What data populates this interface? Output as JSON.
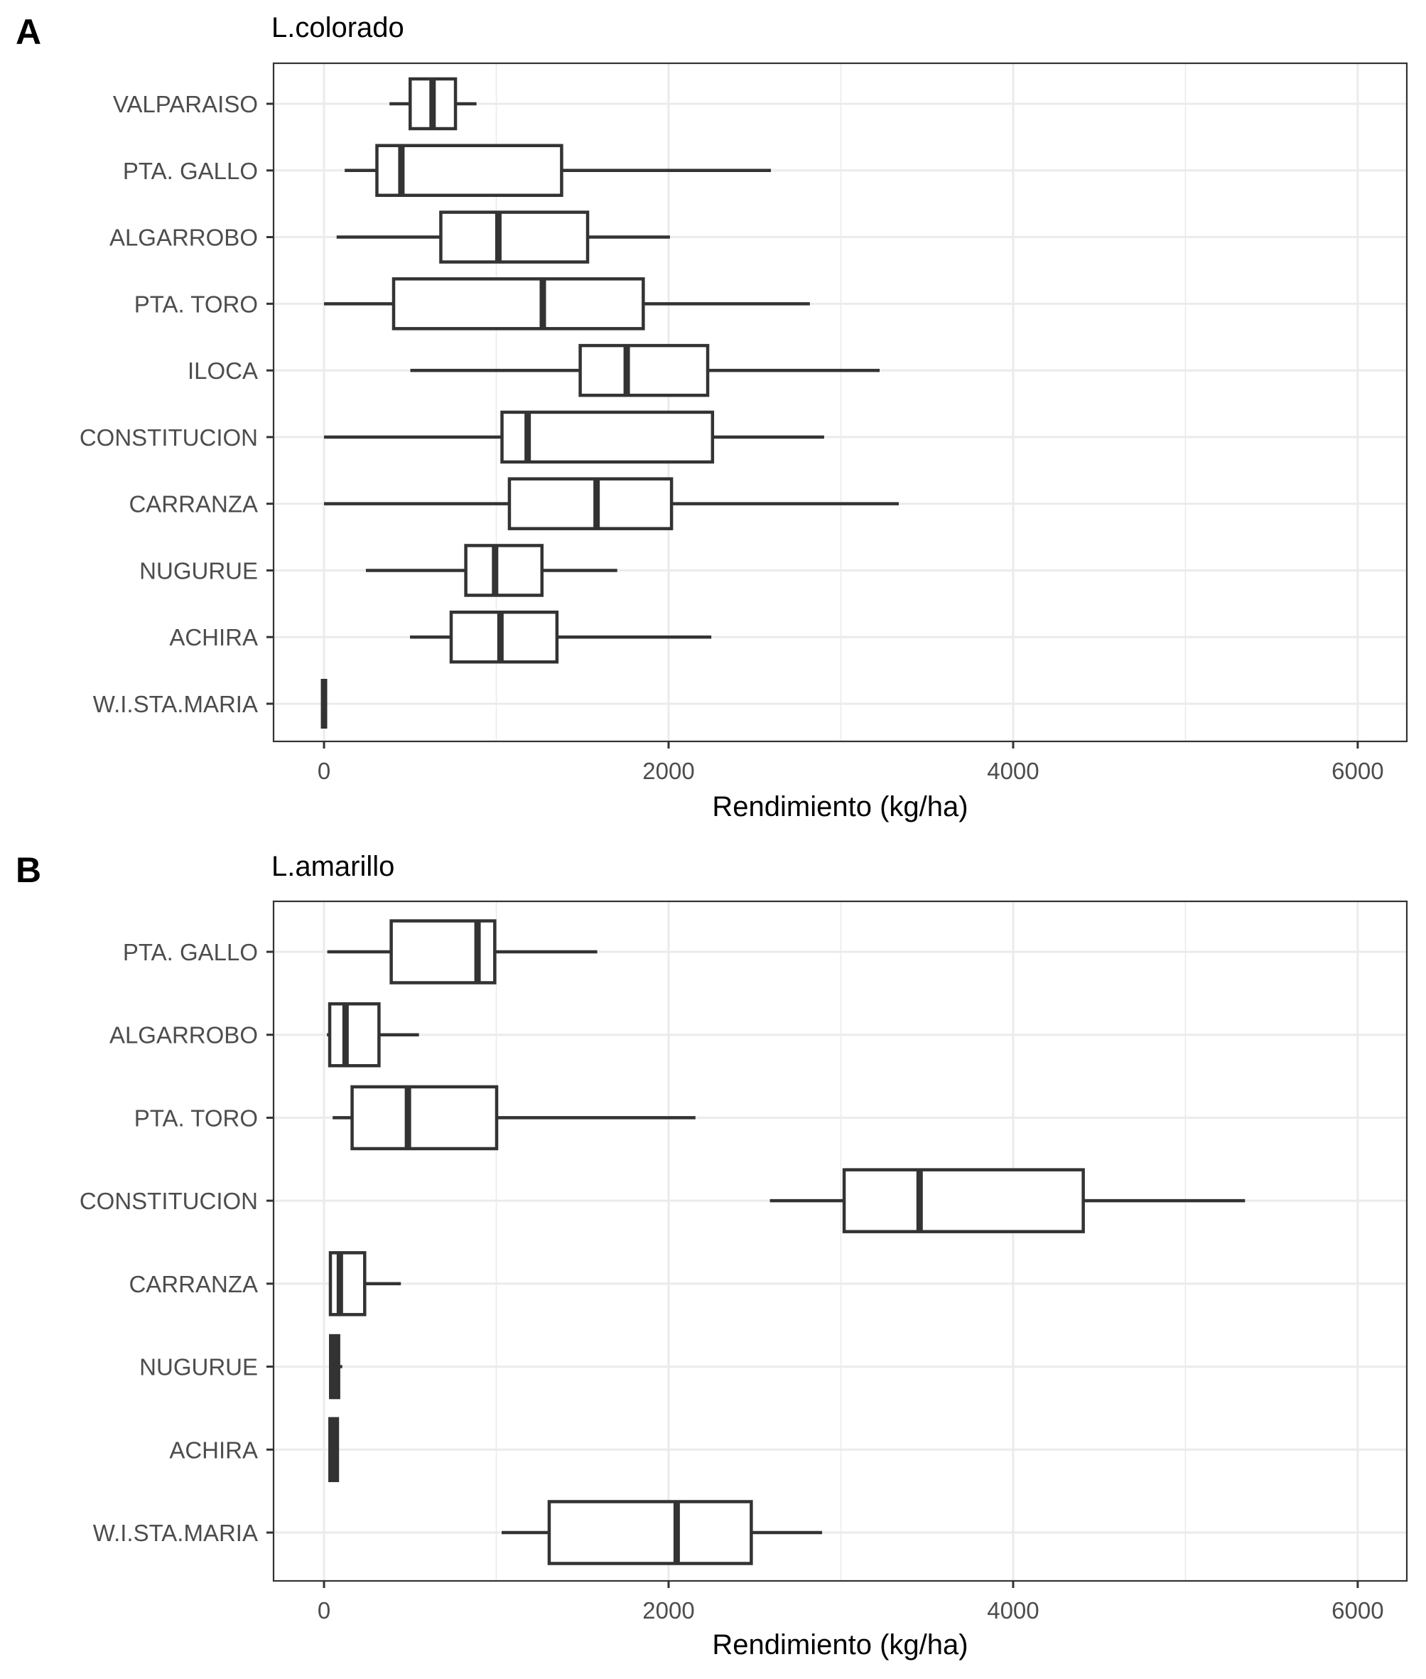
{
  "chart_data": [
    {
      "type": "boxplot",
      "panel_label": "A",
      "title": "L.colorado",
      "xlabel": "Rendimiento (kg/ha)",
      "ylabel": "",
      "xlim": [
        -293,
        6285
      ],
      "xticks": [
        0,
        2000,
        4000,
        6000
      ],
      "xtick_labels": [
        "0",
        "2000",
        "4000",
        "6000"
      ],
      "grid": true,
      "orientation": "horizontal",
      "categories": [
        "VALPARAISO",
        "PTA. GALLO",
        "ALGARROBO",
        "PTA. TORO",
        "ILOCA",
        "CONSTITUCION",
        "CARRANZA",
        "NUGURUE",
        "ACHIRA",
        "W.I.STA.MARIA"
      ],
      "series": [
        {
          "name": "VALPARAISO",
          "min": 380,
          "q1": 500,
          "median": 630,
          "q3": 763,
          "max": 885
        },
        {
          "name": "PTA. GALLO",
          "min": 120,
          "q1": 307,
          "median": 449,
          "q3": 1379,
          "max": 2594
        },
        {
          "name": "ALGARROBO",
          "min": 73,
          "q1": 678,
          "median": 1012,
          "q3": 1530,
          "max": 2008
        },
        {
          "name": "PTA. TORO",
          "min": 0,
          "q1": 404,
          "median": 1270,
          "q3": 1853,
          "max": 2820
        },
        {
          "name": "ILOCA",
          "min": 501,
          "q1": 1487,
          "median": 1757,
          "q3": 2227,
          "max": 3225
        },
        {
          "name": "CONSTITUCION",
          "min": 0,
          "q1": 1033,
          "median": 1182,
          "q3": 2255,
          "max": 2903
        },
        {
          "name": "CARRANZA",
          "min": 0,
          "q1": 1076,
          "median": 1582,
          "q3": 2017,
          "max": 3336
        },
        {
          "name": "NUGURUE",
          "min": 243,
          "q1": 823,
          "median": 993,
          "q3": 1265,
          "max": 1702
        },
        {
          "name": "ACHIRA",
          "min": 499,
          "q1": 738,
          "median": 1024,
          "q3": 1352,
          "max": 2248
        },
        {
          "name": "W.I.STA.MARIA",
          "min": 0,
          "q1": 0,
          "median": 0,
          "q3": 0,
          "max": 0
        }
      ]
    },
    {
      "type": "boxplot",
      "panel_label": "B",
      "title": "L.amarillo",
      "xlabel": "Rendimiento (kg/ha)",
      "ylabel": "",
      "xlim": [
        -293,
        6285
      ],
      "xticks": [
        0,
        2000,
        4000,
        6000
      ],
      "xtick_labels": [
        "0",
        "2000",
        "4000",
        "6000"
      ],
      "grid": true,
      "orientation": "horizontal",
      "categories": [
        "PTA. GALLO",
        "ALGARROBO",
        "PTA. TORO",
        "CONSTITUCION",
        "CARRANZA",
        "NUGURUE",
        "ACHIRA",
        "W.I.STA.MARIA"
      ],
      "series": [
        {
          "name": "PTA. GALLO",
          "min": 19,
          "q1": 390,
          "median": 891,
          "q3": 991,
          "max": 1586
        },
        {
          "name": "ALGARROBO",
          "min": 17,
          "q1": 33,
          "median": 125,
          "q3": 319,
          "max": 551
        },
        {
          "name": "PTA. TORO",
          "min": 50,
          "q1": 163,
          "median": 487,
          "q3": 1002,
          "max": 2156
        },
        {
          "name": "CONSTITUCION",
          "min": 2588,
          "q1": 3019,
          "median": 3457,
          "q3": 4407,
          "max": 5346
        },
        {
          "name": "CARRANZA",
          "min": 29,
          "q1": 37,
          "median": 92,
          "q3": 236,
          "max": 446
        },
        {
          "name": "NUGURUE",
          "min": 35,
          "q1": 38,
          "median": 59,
          "q3": 85,
          "max": 106
        },
        {
          "name": "ACHIRA",
          "min": 31,
          "q1": 34,
          "median": 54,
          "q3": 78,
          "max": 78
        },
        {
          "name": "W.I.STA.MARIA",
          "min": 1031,
          "q1": 1307,
          "median": 2047,
          "q3": 2480,
          "max": 2891
        }
      ]
    }
  ]
}
